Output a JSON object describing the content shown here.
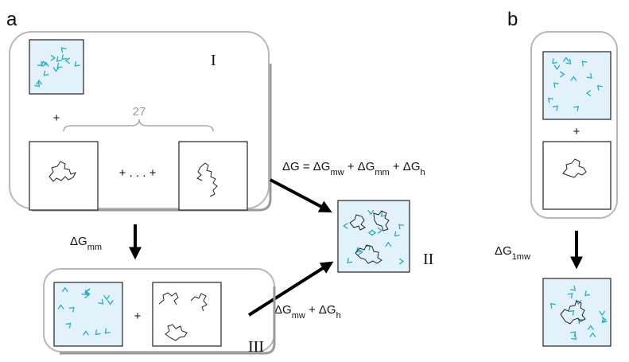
{
  "panel_a": {
    "label": "a",
    "group_i": {
      "label": "I",
      "plus": "+",
      "brace_count": "27",
      "ellipsis": "+ . . . +"
    },
    "group_iii": {
      "label": "III",
      "plus": "+"
    },
    "state_ii": {
      "label": "II"
    },
    "dg_total": [
      "ΔG = ΔG",
      "mw",
      " + ΔG",
      "mm",
      " + ΔG",
      "h"
    ],
    "dg_mm": [
      "ΔG",
      "mm"
    ],
    "dg_mw_h": [
      "ΔG",
      "mw",
      " + ΔG",
      "h"
    ]
  },
  "panel_b": {
    "label": "b",
    "plus": "+",
    "dg_1mw": [
      "ΔG",
      "1mw"
    ]
  }
}
